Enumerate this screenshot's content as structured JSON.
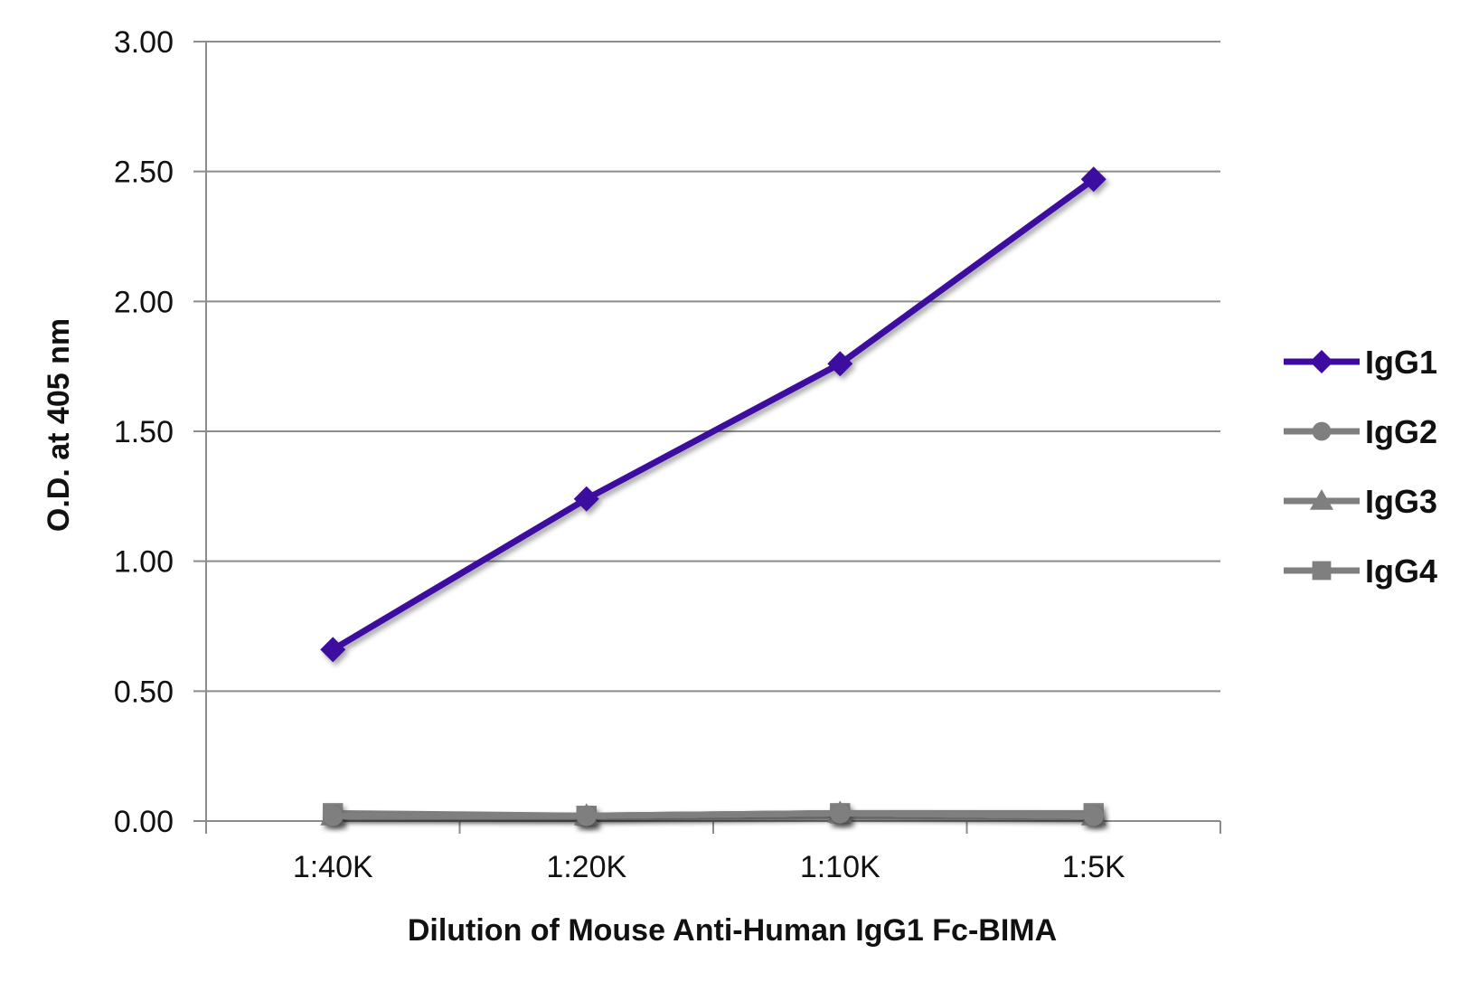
{
  "chart_data": {
    "type": "line",
    "categories": [
      "1:40K",
      "1:20K",
      "1:10K",
      "1:5K"
    ],
    "xlabel": "Dilution of Mouse Anti-Human IgG1 Fc-BIMA",
    "ylabel": "O.D. at 405 nm",
    "ylim": [
      0,
      3
    ],
    "yticks": [
      "0.00",
      "0.50",
      "1.00",
      "1.50",
      "2.00",
      "2.50",
      "3.00"
    ],
    "grid": true,
    "legend_position": "right",
    "series": [
      {
        "name": "IgG1",
        "values": [
          0.66,
          1.24,
          1.76,
          2.47
        ],
        "color": "#3d0ba0",
        "marker": "diamond"
      },
      {
        "name": "IgG2",
        "values": [
          0.02,
          0.02,
          0.03,
          0.02
        ],
        "color": "#7f7f7f",
        "marker": "circle"
      },
      {
        "name": "IgG3",
        "values": [
          0.02,
          0.02,
          0.03,
          0.02
        ],
        "color": "#7f7f7f",
        "marker": "triangle"
      },
      {
        "name": "IgG4",
        "values": [
          0.03,
          0.02,
          0.03,
          0.03
        ],
        "color": "#7f7f7f",
        "marker": "square"
      }
    ]
  }
}
